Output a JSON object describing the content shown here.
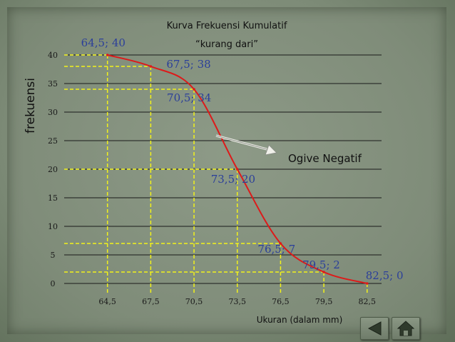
{
  "chart_data": {
    "type": "line",
    "title": "Kurva Frekuensi Kumulatif",
    "subtitle": "“kurang dari”",
    "xlabel": "Ukuran (dalam mm)",
    "ylabel": "frekuensi",
    "x_ticks": [
      "64,5",
      "67,5",
      "70,5",
      "73,5",
      "76,5",
      "79,5",
      "82,5"
    ],
    "y_ticks": [
      "0",
      "5",
      "10",
      "15",
      "20",
      "25",
      "30",
      "35",
      "40"
    ],
    "xlim": [
      61.5,
      83.5
    ],
    "ylim": [
      0,
      40
    ],
    "grid": true,
    "series": [
      {
        "x": [
          64.5,
          67.5,
          70.5,
          73.5,
          76.5,
          79.5,
          82.5
        ],
        "y": [
          40,
          38,
          34,
          20,
          7,
          2,
          0
        ],
        "color": "#dd1a1a"
      }
    ],
    "point_labels": [
      "64,5; 40",
      "67,5; 38",
      "70,5; 34",
      "73,5; 20",
      "76,5; 7",
      "79,5; 2",
      "82,5; 0"
    ],
    "annotation": "Ogive Negatif",
    "colors": {
      "guide": "#f2f21a",
      "grid": "#1a1a1a",
      "point_label": "#2b3f9a"
    }
  },
  "nav": {
    "prev_icon": "prev-slide-icon",
    "home_icon": "home-icon"
  }
}
